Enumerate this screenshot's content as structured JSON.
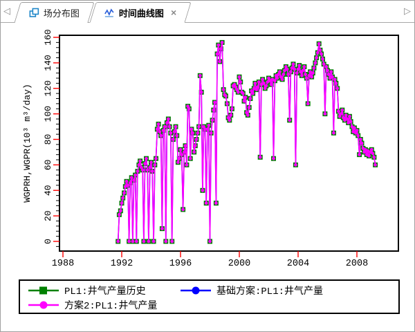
{
  "window": {
    "bg": "#ffffff",
    "border_color": "#a0a0a0"
  },
  "tab_bar": {
    "scroll_left_icon": "◁",
    "scroll_right_icon": "▷",
    "tabs": [
      {
        "label": "场分布图",
        "icon": "field-map-icon",
        "active": false
      },
      {
        "label": "时间曲线图",
        "icon": "time-curve-icon",
        "active": true,
        "close_icon": "×"
      }
    ]
  },
  "chart_data": {
    "type": "line",
    "title": "",
    "xlabel": "",
    "ylabel": "WGPRH,WGPR(10³ m³/day)",
    "xlim": [
      1987.7,
      2010.8
    ],
    "ylim": [
      -8,
      162
    ],
    "x_ticks": [
      1988,
      1992,
      1996,
      2000,
      2004,
      2008
    ],
    "y_ticks": [
      0,
      20,
      40,
      60,
      80,
      100,
      120,
      140,
      160
    ],
    "y_minor_step": 4,
    "grid": false,
    "legend_position": "bottom-box",
    "colors": {
      "axis": "#000000",
      "major_tick": "#ff0000",
      "minor_tick": "#000000",
      "text": "#000000"
    },
    "series": [
      {
        "name": "PL1:井气产量历史",
        "color": "#008000",
        "marker": "square",
        "line": true,
        "points": [
          [
            1991.75,
            0
          ],
          [
            1991.83,
            21
          ],
          [
            1991.92,
            24
          ],
          [
            1992.0,
            30
          ],
          [
            1992.08,
            34
          ],
          [
            1992.17,
            38
          ],
          [
            1992.25,
            43
          ],
          [
            1992.33,
            47
          ],
          [
            1992.42,
            44
          ],
          [
            1992.5,
            0
          ],
          [
            1992.58,
            46
          ],
          [
            1992.67,
            50
          ],
          [
            1992.75,
            0
          ],
          [
            1992.83,
            48
          ],
          [
            1992.92,
            52
          ],
          [
            1993.0,
            0
          ],
          [
            1993.08,
            55
          ],
          [
            1993.17,
            60
          ],
          [
            1993.25,
            63
          ],
          [
            1993.33,
            58
          ],
          [
            1993.42,
            56
          ],
          [
            1993.5,
            0
          ],
          [
            1993.58,
            61
          ],
          [
            1993.67,
            65
          ],
          [
            1993.75,
            56
          ],
          [
            1993.83,
            0
          ],
          [
            1993.92,
            58
          ],
          [
            1994.0,
            62
          ],
          [
            1994.08,
            55
          ],
          [
            1994.17,
            0
          ],
          [
            1994.25,
            60
          ],
          [
            1994.33,
            65
          ],
          [
            1994.42,
            88
          ],
          [
            1994.5,
            92
          ],
          [
            1994.58,
            86
          ],
          [
            1994.67,
            83
          ],
          [
            1994.75,
            10
          ],
          [
            1994.83,
            87
          ],
          [
            1994.92,
            90
          ],
          [
            1995.0,
            0
          ],
          [
            1995.08,
            93
          ],
          [
            1995.17,
            96
          ],
          [
            1995.25,
            90
          ],
          [
            1995.33,
            85
          ],
          [
            1995.42,
            0
          ],
          [
            1995.5,
            80
          ],
          [
            1995.58,
            86
          ],
          [
            1995.67,
            90
          ],
          [
            1995.75,
            83
          ],
          [
            1995.83,
            62
          ],
          [
            1995.92,
            65
          ],
          [
            1996.0,
            72
          ],
          [
            1996.08,
            68
          ],
          [
            1996.17,
            25
          ],
          [
            1996.25,
            70
          ],
          [
            1996.33,
            75
          ],
          [
            1996.42,
            60
          ],
          [
            1996.5,
            106
          ],
          [
            1996.58,
            104
          ],
          [
            1996.67,
            65
          ],
          [
            1996.75,
            88
          ],
          [
            1996.83,
            85
          ],
          [
            1996.92,
            70
          ],
          [
            1997.0,
            75
          ],
          [
            1997.08,
            80
          ],
          [
            1997.17,
            85
          ],
          [
            1997.25,
            90
          ],
          [
            1997.33,
            130
          ],
          [
            1997.42,
            117
          ],
          [
            1997.5,
            40
          ],
          [
            1997.58,
            90
          ],
          [
            1997.67,
            88
          ],
          [
            1997.75,
            30
          ],
          [
            1997.83,
            88
          ],
          [
            1997.92,
            91
          ],
          [
            1998.0,
            0
          ],
          [
            1998.08,
            85
          ],
          [
            1998.17,
            95
          ],
          [
            1998.25,
            103
          ],
          [
            1998.33,
            109
          ],
          [
            1998.42,
            30
          ],
          [
            1998.5,
            147
          ],
          [
            1998.58,
            154
          ],
          [
            1998.67,
            141
          ],
          [
            1998.75,
            151
          ],
          [
            1998.83,
            156
          ],
          [
            1998.92,
            119
          ],
          [
            1999.0,
            115
          ],
          [
            1999.08,
            114
          ],
          [
            1999.17,
            108
          ],
          [
            1999.25,
            97
          ],
          [
            1999.33,
            95
          ],
          [
            1999.42,
            99
          ],
          [
            1999.5,
            104
          ],
          [
            1999.58,
            122
          ],
          [
            1999.67,
            123
          ],
          [
            1999.75,
            121
          ],
          [
            1999.83,
            119
          ],
          [
            1999.92,
            117
          ],
          [
            2000.0,
            129
          ],
          [
            2000.08,
            125
          ],
          [
            2000.17,
            117
          ],
          [
            2000.25,
            116
          ],
          [
            2000.33,
            110
          ],
          [
            2000.42,
            113
          ],
          [
            2000.5,
            101
          ],
          [
            2000.58,
            99
          ],
          [
            2000.67,
            105
          ],
          [
            2000.75,
            112
          ],
          [
            2000.83,
            118
          ],
          [
            2000.92,
            116
          ],
          [
            2001.0,
            120
          ],
          [
            2001.08,
            124
          ],
          [
            2001.17,
            119
          ],
          [
            2001.25,
            121
          ],
          [
            2001.33,
            125
          ],
          [
            2001.42,
            66
          ],
          [
            2001.5,
            123
          ],
          [
            2001.58,
            127
          ],
          [
            2001.67,
            124
          ],
          [
            2001.75,
            120
          ],
          [
            2001.83,
            122
          ],
          [
            2001.92,
            125
          ],
          [
            2002.0,
            128
          ],
          [
            2002.08,
            126
          ],
          [
            2002.17,
            123
          ],
          [
            2002.25,
            127
          ],
          [
            2002.33,
            65
          ],
          [
            2002.42,
            126
          ],
          [
            2002.5,
            130
          ],
          [
            2002.58,
            128
          ],
          [
            2002.67,
            131
          ],
          [
            2002.75,
            133
          ],
          [
            2002.83,
            129
          ],
          [
            2002.92,
            127
          ],
          [
            2003.0,
            131
          ],
          [
            2003.08,
            134
          ],
          [
            2003.17,
            137
          ],
          [
            2003.25,
            135
          ],
          [
            2003.33,
            131
          ],
          [
            2003.42,
            95
          ],
          [
            2003.5,
            133
          ],
          [
            2003.58,
            136
          ],
          [
            2003.67,
            139
          ],
          [
            2003.75,
            135
          ],
          [
            2003.83,
            60
          ],
          [
            2003.92,
            132
          ],
          [
            2004.0,
            135
          ],
          [
            2004.08,
            138
          ],
          [
            2004.17,
            133
          ],
          [
            2004.25,
            130
          ],
          [
            2004.33,
            134
          ],
          [
            2004.42,
            137
          ],
          [
            2004.5,
            131
          ],
          [
            2004.58,
            128
          ],
          [
            2004.67,
            108
          ],
          [
            2004.75,
            130
          ],
          [
            2004.83,
            133
          ],
          [
            2004.92,
            129
          ],
          [
            2005.0,
            132
          ],
          [
            2005.08,
            136
          ],
          [
            2005.17,
            140
          ],
          [
            2005.25,
            144
          ],
          [
            2005.33,
            148
          ],
          [
            2005.42,
            155
          ],
          [
            2005.5,
            150
          ],
          [
            2005.58,
            147
          ],
          [
            2005.67,
            143
          ],
          [
            2005.75,
            139
          ],
          [
            2005.83,
            100
          ],
          [
            2005.92,
            137
          ],
          [
            2006.0,
            134
          ],
          [
            2006.08,
            131
          ],
          [
            2006.17,
            128
          ],
          [
            2006.25,
            133
          ],
          [
            2006.33,
            129
          ],
          [
            2006.42,
            85
          ],
          [
            2006.5,
            127
          ],
          [
            2006.58,
            124
          ],
          [
            2006.67,
            120
          ],
          [
            2006.75,
            102
          ],
          [
            2006.83,
            98
          ],
          [
            2006.92,
            100
          ],
          [
            2007.0,
            103
          ],
          [
            2007.08,
            97
          ],
          [
            2007.17,
            95
          ],
          [
            2007.25,
            99
          ],
          [
            2007.33,
            96
          ],
          [
            2007.42,
            93
          ],
          [
            2007.5,
            98
          ],
          [
            2007.58,
            94
          ],
          [
            2007.67,
            90
          ],
          [
            2007.75,
            86
          ],
          [
            2007.83,
            89
          ],
          [
            2007.92,
            85
          ],
          [
            2008.0,
            87
          ],
          [
            2008.08,
            83
          ],
          [
            2008.17,
            68
          ],
          [
            2008.25,
            80
          ],
          [
            2008.33,
            77
          ],
          [
            2008.42,
            73
          ],
          [
            2008.5,
            70
          ],
          [
            2008.58,
            72
          ],
          [
            2008.67,
            68
          ],
          [
            2008.75,
            71
          ],
          [
            2008.83,
            67
          ],
          [
            2008.92,
            70
          ],
          [
            2009.0,
            72
          ],
          [
            2009.08,
            69
          ],
          [
            2009.17,
            66
          ],
          [
            2009.25,
            60
          ]
        ]
      },
      {
        "name": "基础方案:PL1:井气产量",
        "color": "#0000ff",
        "marker": "circle",
        "line": true,
        "points_ref": 0
      },
      {
        "name": "方案2:PL1:井气产量",
        "color": "#ff00ff",
        "marker": "circle",
        "line": true,
        "points_ref": 0
      }
    ]
  },
  "legend": {
    "entries": [
      {
        "series_index": 0,
        "label": "PL1:井气产量历史"
      },
      {
        "series_index": 1,
        "label": "基础方案:PL1:井气产量"
      },
      {
        "series_index": 2,
        "label": "方案2:PL1:井气产量"
      }
    ]
  }
}
